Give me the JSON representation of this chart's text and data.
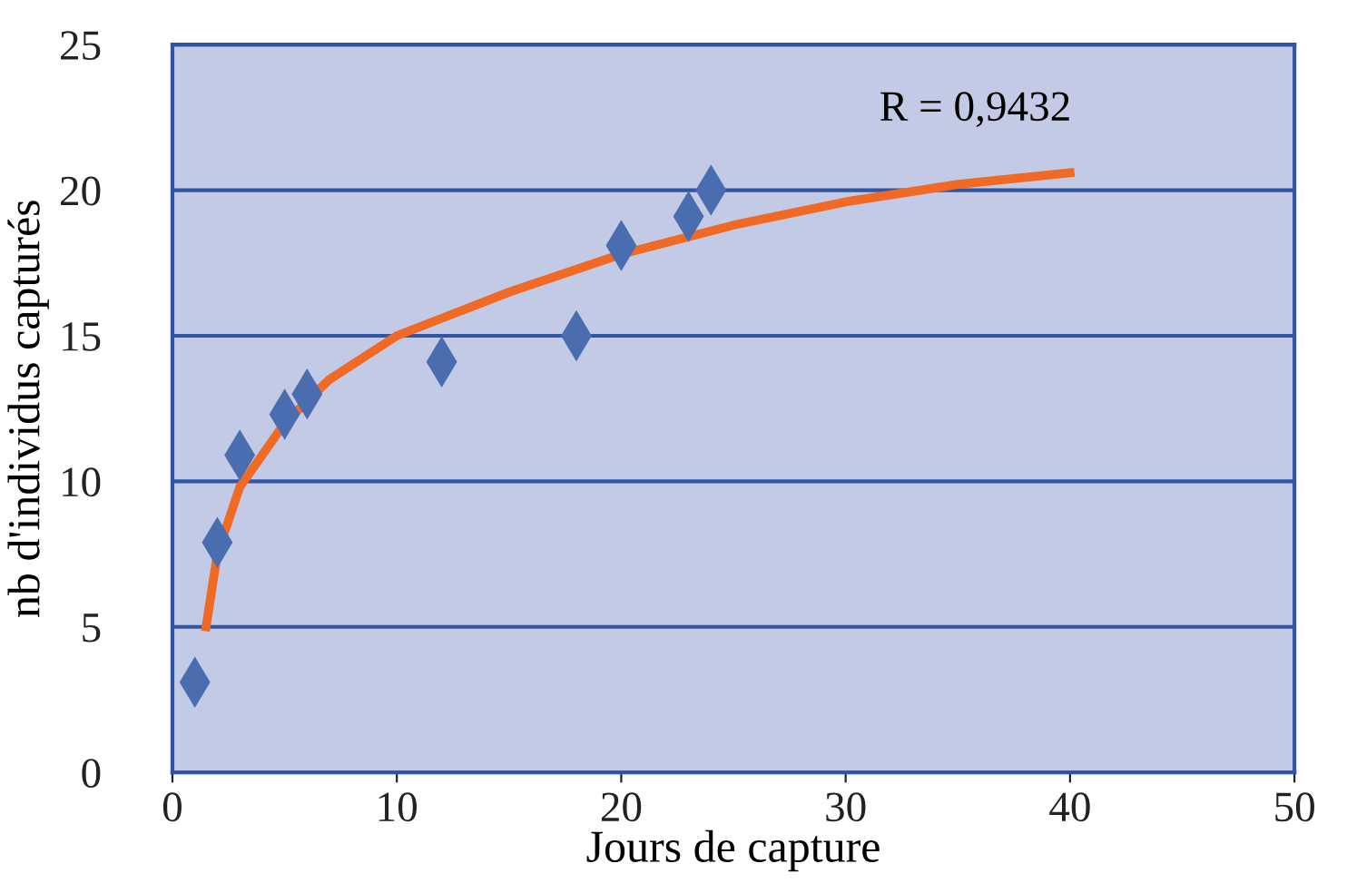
{
  "chart_data": {
    "type": "scatter",
    "xlabel": "Jours de capture",
    "ylabel": "nb d'individus capturés",
    "annotations": [
      "R = 0,9432"
    ],
    "series": [
      {
        "color": "#4a6db0",
        "marker": "diamond",
        "x": [
          1,
          2,
          3,
          5,
          6,
          12,
          18,
          20,
          23,
          24
        ],
        "values": [
          3.1,
          7.9,
          10.9,
          12.3,
          13,
          14.1,
          15,
          18.1,
          19.1,
          20
        ]
      },
      {
        "type": "line",
        "color": "#f06a25",
        "marker": "none",
        "x": [
          1.5,
          2,
          3,
          5,
          7,
          10,
          15,
          20,
          25,
          30,
          35,
          40
        ],
        "values": [
          5,
          7.5,
          9.8,
          12,
          13.5,
          15,
          16.5,
          17.8,
          18.8,
          19.6,
          20.2,
          20.6
        ]
      }
    ],
    "xlim": [
      0,
      50
    ],
    "xticks": [
      0,
      10,
      20,
      30,
      40,
      50
    ],
    "ylim": [
      0,
      25
    ],
    "yticks": [
      0,
      5,
      10,
      15,
      20,
      25
    ],
    "grid": "y",
    "legend": false
  }
}
